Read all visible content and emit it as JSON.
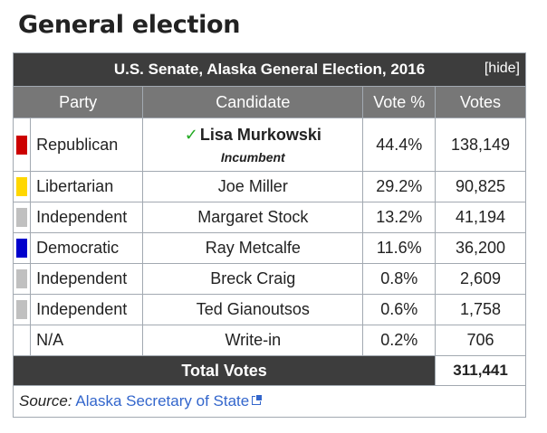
{
  "heading": "General election",
  "table": {
    "title": "U.S. Senate, Alaska General Election, 2016",
    "hide_label": "[hide]",
    "headers": {
      "party": "Party",
      "candidate": "Candidate",
      "vote_pct": "Vote %",
      "votes": "Votes"
    },
    "rows": [
      {
        "party": "Republican",
        "color": "#cc0000",
        "candidate": "Lisa Murkowski",
        "note": "Incumbent",
        "vote_pct": "44.4%",
        "votes": "138,149",
        "winner_mark": "✓"
      },
      {
        "party": "Libertarian",
        "color": "#ffd700",
        "candidate": "Joe Miller",
        "vote_pct": "29.2%",
        "votes": "90,825"
      },
      {
        "party": "Independent",
        "color": "#c0c0c0",
        "candidate": "Margaret Stock",
        "vote_pct": "13.2%",
        "votes": "41,194"
      },
      {
        "party": "Democratic",
        "color": "#0000cc",
        "candidate": "Ray Metcalfe",
        "vote_pct": "11.6%",
        "votes": "36,200"
      },
      {
        "party": "Independent",
        "color": "#c0c0c0",
        "candidate": "Breck Craig",
        "vote_pct": "0.8%",
        "votes": "2,609"
      },
      {
        "party": "Independent",
        "color": "#c0c0c0",
        "candidate": "Ted Gianoutsos",
        "vote_pct": "0.6%",
        "votes": "1,758"
      },
      {
        "party": "N/A",
        "color": "#ffffff",
        "candidate": "Write-in",
        "vote_pct": "0.2%",
        "votes": "706"
      }
    ],
    "total_label": "Total Votes",
    "total_value": "311,441",
    "source_label": "Source:",
    "source_link": "Alaska Secretary of State"
  }
}
